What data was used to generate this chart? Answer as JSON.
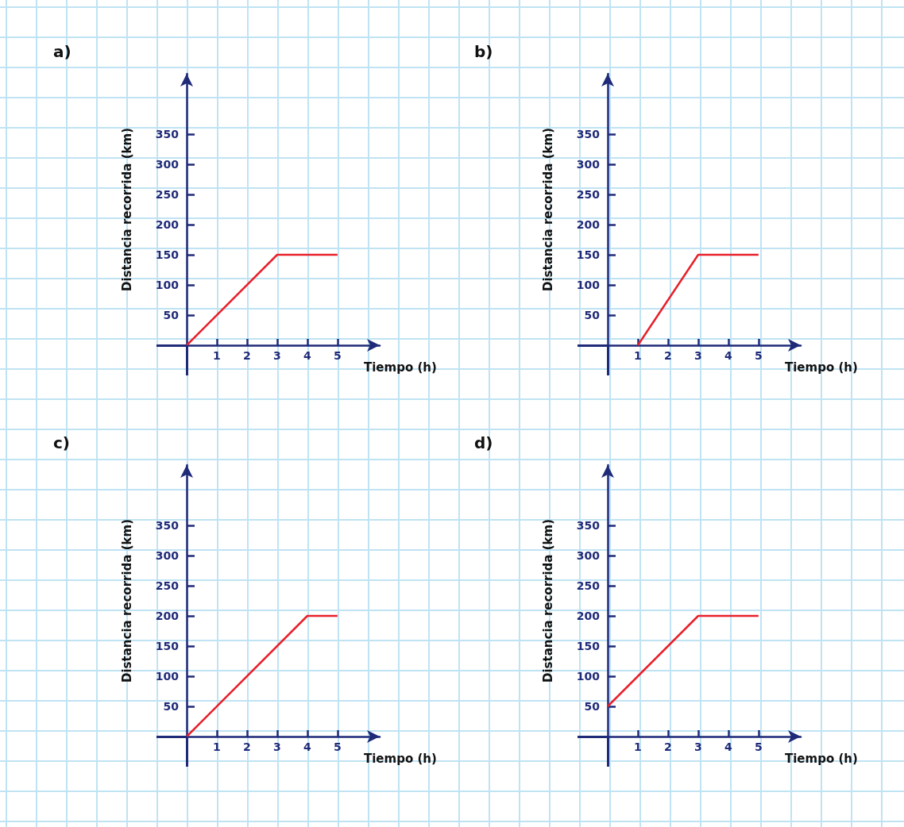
{
  "chart_data": [
    {
      "type": "line",
      "title": "a)",
      "xlabel": "Tiempo (h)",
      "ylabel": "Distancia recorrida (km)",
      "x": [
        0,
        3,
        5
      ],
      "series": [
        {
          "color": "#e8202a",
          "values": [
            0,
            150,
            150
          ]
        }
      ],
      "xlim": [
        0,
        6.4
      ],
      "ylim": [
        0,
        450
      ],
      "xticks": [
        1,
        2,
        3,
        4,
        5
      ],
      "yticks": [
        50,
        100,
        150,
        200,
        250,
        300,
        350
      ],
      "marker": "none"
    },
    {
      "type": "line",
      "title": "b)",
      "xlabel": "Tiempo (h)",
      "ylabel": "Distancia recorrida (km)",
      "x": [
        1,
        3,
        5
      ],
      "series": [
        {
          "color": "#e8202a",
          "values": [
            0,
            150,
            150
          ]
        }
      ],
      "xlim": [
        0,
        6.4
      ],
      "ylim": [
        0,
        450
      ],
      "xticks": [
        1,
        2,
        3,
        4,
        5
      ],
      "yticks": [
        50,
        100,
        150,
        200,
        250,
        300,
        350
      ],
      "marker": "none"
    },
    {
      "type": "line",
      "title": "c)",
      "xlabel": "Tiempo (h)",
      "ylabel": "Distancia recorrida (km)",
      "x": [
        0,
        4,
        5
      ],
      "series": [
        {
          "color": "#e8202a",
          "values": [
            0,
            200,
            200
          ]
        }
      ],
      "xlim": [
        0,
        6.4
      ],
      "ylim": [
        0,
        450
      ],
      "xticks": [
        1,
        2,
        3,
        4,
        5
      ],
      "yticks": [
        50,
        100,
        150,
        200,
        250,
        300,
        350
      ],
      "marker": "none"
    },
    {
      "type": "line",
      "title": "d)",
      "xlabel": "Tiempo (h)",
      "ylabel": "Distancia recorrida (km)",
      "x": [
        0,
        3,
        5
      ],
      "series": [
        {
          "color": "#e8202a",
          "values": [
            50,
            200,
            200
          ]
        }
      ],
      "xlim": [
        0,
        6.4
      ],
      "ylim": [
        0,
        450
      ],
      "xticks": [
        1,
        2,
        3,
        4,
        5
      ],
      "yticks": [
        50,
        100,
        150,
        200,
        250,
        300,
        350
      ],
      "marker": "none"
    }
  ]
}
